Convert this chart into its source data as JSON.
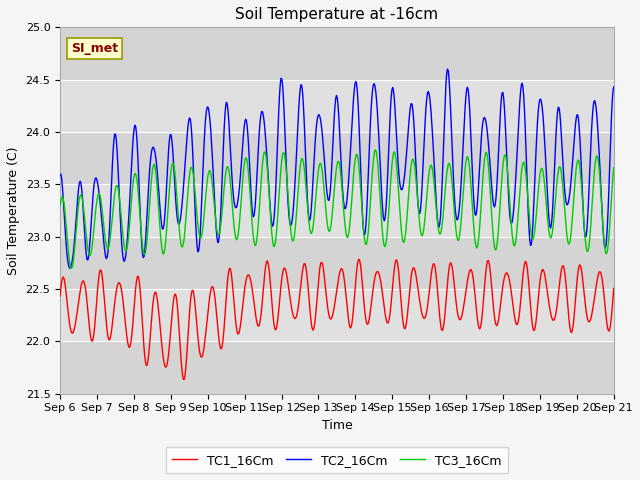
{
  "title": "Soil Temperature at -16cm",
  "xlabel": "Time",
  "ylabel": "Soil Temperature (C)",
  "ylim": [
    21.5,
    25.0
  ],
  "xlim_days": [
    0,
    15
  ],
  "tick_labels": [
    "Sep 6",
    "Sep 7",
    "Sep 8",
    "Sep 9",
    "Sep 10",
    "Sep 11",
    "Sep 12",
    "Sep 13",
    "Sep 14",
    "Sep 15",
    "Sep 16",
    "Sep 17",
    "Sep 18",
    "Sep 19",
    "Sep 20",
    "Sep 21"
  ],
  "legend_labels": [
    "TC1_16Cm",
    "TC2_16Cm",
    "TC3_16Cm"
  ],
  "line_colors": [
    "#ff0000",
    "#0000ff",
    "#00cc00"
  ],
  "annotation_text": "SI_met",
  "annotation_color": "#8b0000",
  "annotation_bg": "#ffffcc",
  "plot_bg_color": "#e8e8e8",
  "fig_bg_color": "#f5f5f5",
  "band1_color": "#d8d8d8",
  "band2_color": "#e8e8e8",
  "grid_color": "#ffffff",
  "title_fontsize": 11,
  "axis_fontsize": 9,
  "tick_fontsize": 8,
  "legend_fontsize": 9
}
